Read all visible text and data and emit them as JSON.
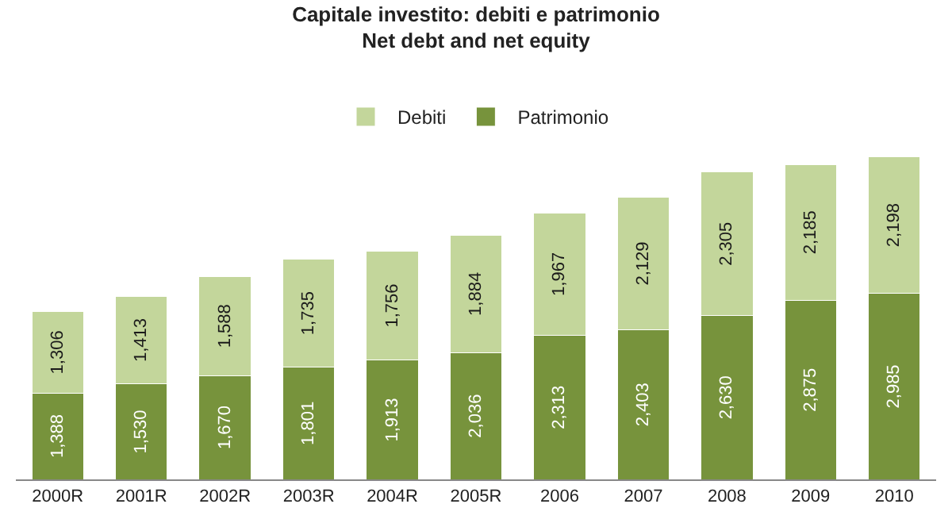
{
  "chart_data": {
    "type": "bar",
    "title": "Capitale investito: debiti e patrimonio\nNet debt and net equity",
    "categories": [
      "2000R",
      "2001R",
      "2002R",
      "2003R",
      "2004R",
      "2005R",
      "2006",
      "2007",
      "2008",
      "2009",
      "2010"
    ],
    "stacked": true,
    "legend": "top",
    "series": [
      {
        "name": "Patrimonio",
        "color": "#77933c",
        "values": [
          1388,
          1530,
          1670,
          1801,
          1913,
          2036,
          2313,
          2403,
          2630,
          2875,
          2985
        ],
        "value_labels": [
          "1,388",
          "1,530",
          "1,670",
          "1,801",
          "1,913",
          "2,036",
          "2,313",
          "2,403",
          "2,630",
          "2,875",
          "2,985"
        ]
      },
      {
        "name": "Debiti",
        "color": "#c3d69b",
        "values": [
          1306,
          1413,
          1588,
          1735,
          1756,
          1884,
          1967,
          2129,
          2305,
          2185,
          2198
        ],
        "value_labels": [
          "1,306",
          "1,413",
          "1,588",
          "1,735",
          "1,756",
          "1,884",
          "1,967",
          "2,129",
          "2,305",
          "2,185",
          "2,198"
        ]
      }
    ]
  }
}
